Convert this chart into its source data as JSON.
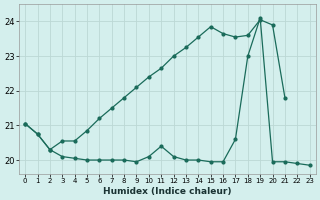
{
  "title": "",
  "xlabel": "Humidex (Indice chaleur)",
  "background_color": "#d4efed",
  "grid_color": "#bcd8d5",
  "line_color": "#1a6b5a",
  "x_values": [
    0,
    1,
    2,
    3,
    4,
    5,
    6,
    7,
    8,
    9,
    10,
    11,
    12,
    13,
    14,
    15,
    16,
    17,
    18,
    19,
    20,
    21,
    22,
    23
  ],
  "line1_y": [
    21.05,
    20.75,
    20.3,
    20.55,
    20.55,
    20.85,
    21.2,
    21.5,
    21.8,
    22.1,
    22.4,
    22.65,
    23.0,
    23.25,
    23.55,
    23.85,
    23.65,
    23.55,
    23.6,
    24.05,
    23.9,
    21.8,
    null,
    null
  ],
  "line2_y": [
    21.05,
    20.75,
    20.3,
    20.1,
    20.05,
    20.0,
    20.0,
    20.0,
    20.0,
    19.95,
    20.1,
    20.4,
    20.1,
    20.0,
    20.0,
    19.95,
    19.95,
    20.6,
    23.0,
    24.1,
    19.95,
    19.95,
    19.9,
    19.85
  ],
  "xlim": [
    -0.5,
    23.5
  ],
  "ylim": [
    19.6,
    24.5
  ],
  "yticks": [
    20,
    21,
    22,
    23,
    24
  ]
}
